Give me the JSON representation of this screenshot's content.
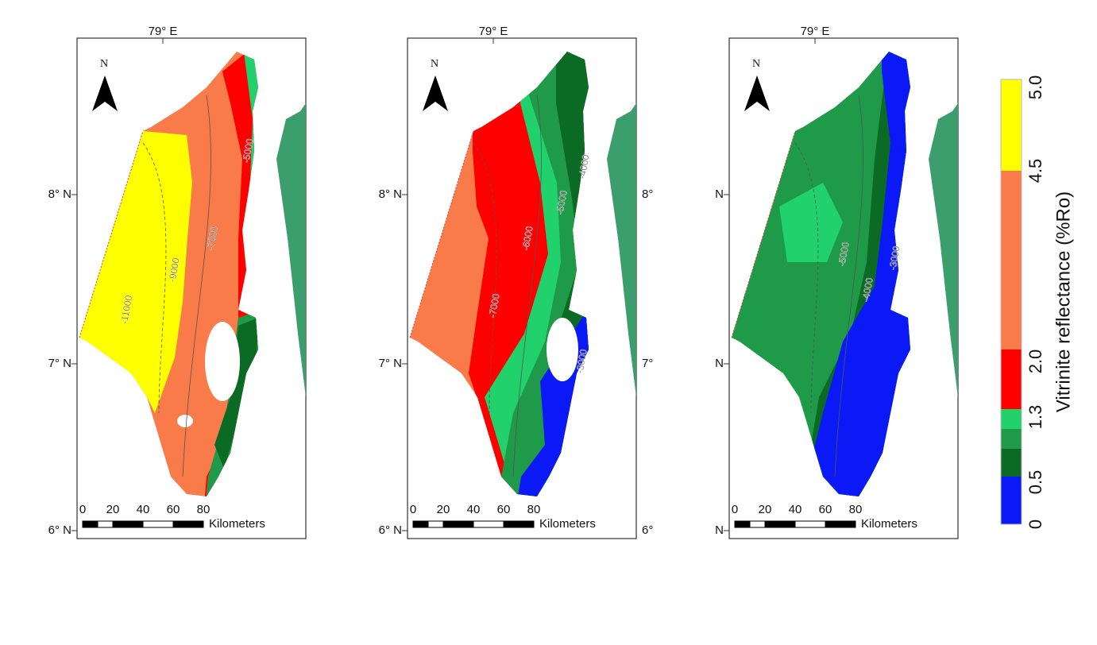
{
  "panels": [
    {
      "longitude_label": "79° E",
      "left_labels": [
        "8° N",
        "7° N",
        "6° N"
      ],
      "right_labels": [],
      "north": "N",
      "contours": [
        "-11000",
        "-9000",
        "-7000",
        "-5000"
      ],
      "scale": {
        "ticks": [
          "0",
          "20",
          "40",
          "60",
          "80"
        ],
        "unit": "Kilometers"
      }
    },
    {
      "longitude_label": "79° E",
      "left_labels": [
        "8° N",
        "7° N",
        "6° N"
      ],
      "right_labels": [
        "8°",
        "7°",
        "6°"
      ],
      "north": "N",
      "contours": [
        "-4000",
        "-5000",
        "-6000",
        "-7000",
        "-3000"
      ],
      "scale": {
        "ticks": [
          "0",
          "20",
          "40",
          "60",
          "80"
        ],
        "unit": "Kilometers"
      }
    },
    {
      "longitude_label": "79° E",
      "left_labels": [
        "N",
        "N",
        "N"
      ],
      "right_labels": [],
      "north": "N",
      "contours": [
        "-5000",
        "-4000",
        "-3000"
      ],
      "scale": {
        "ticks": [
          "0",
          "20",
          "40",
          "60",
          "80"
        ],
        "unit": "Kilometers"
      }
    }
  ],
  "legend": {
    "title": "Vitrinite reflectance (%Ro)",
    "ticks": [
      "0",
      "0.5",
      "1.3",
      "2.0",
      "4.5",
      "5.0"
    ],
    "colors": [
      "#0a19f5",
      "#0b6a23",
      "#1f9a48",
      "#21d16b",
      "#ff0000",
      "#f97b4a",
      "#ffff00"
    ]
  }
}
